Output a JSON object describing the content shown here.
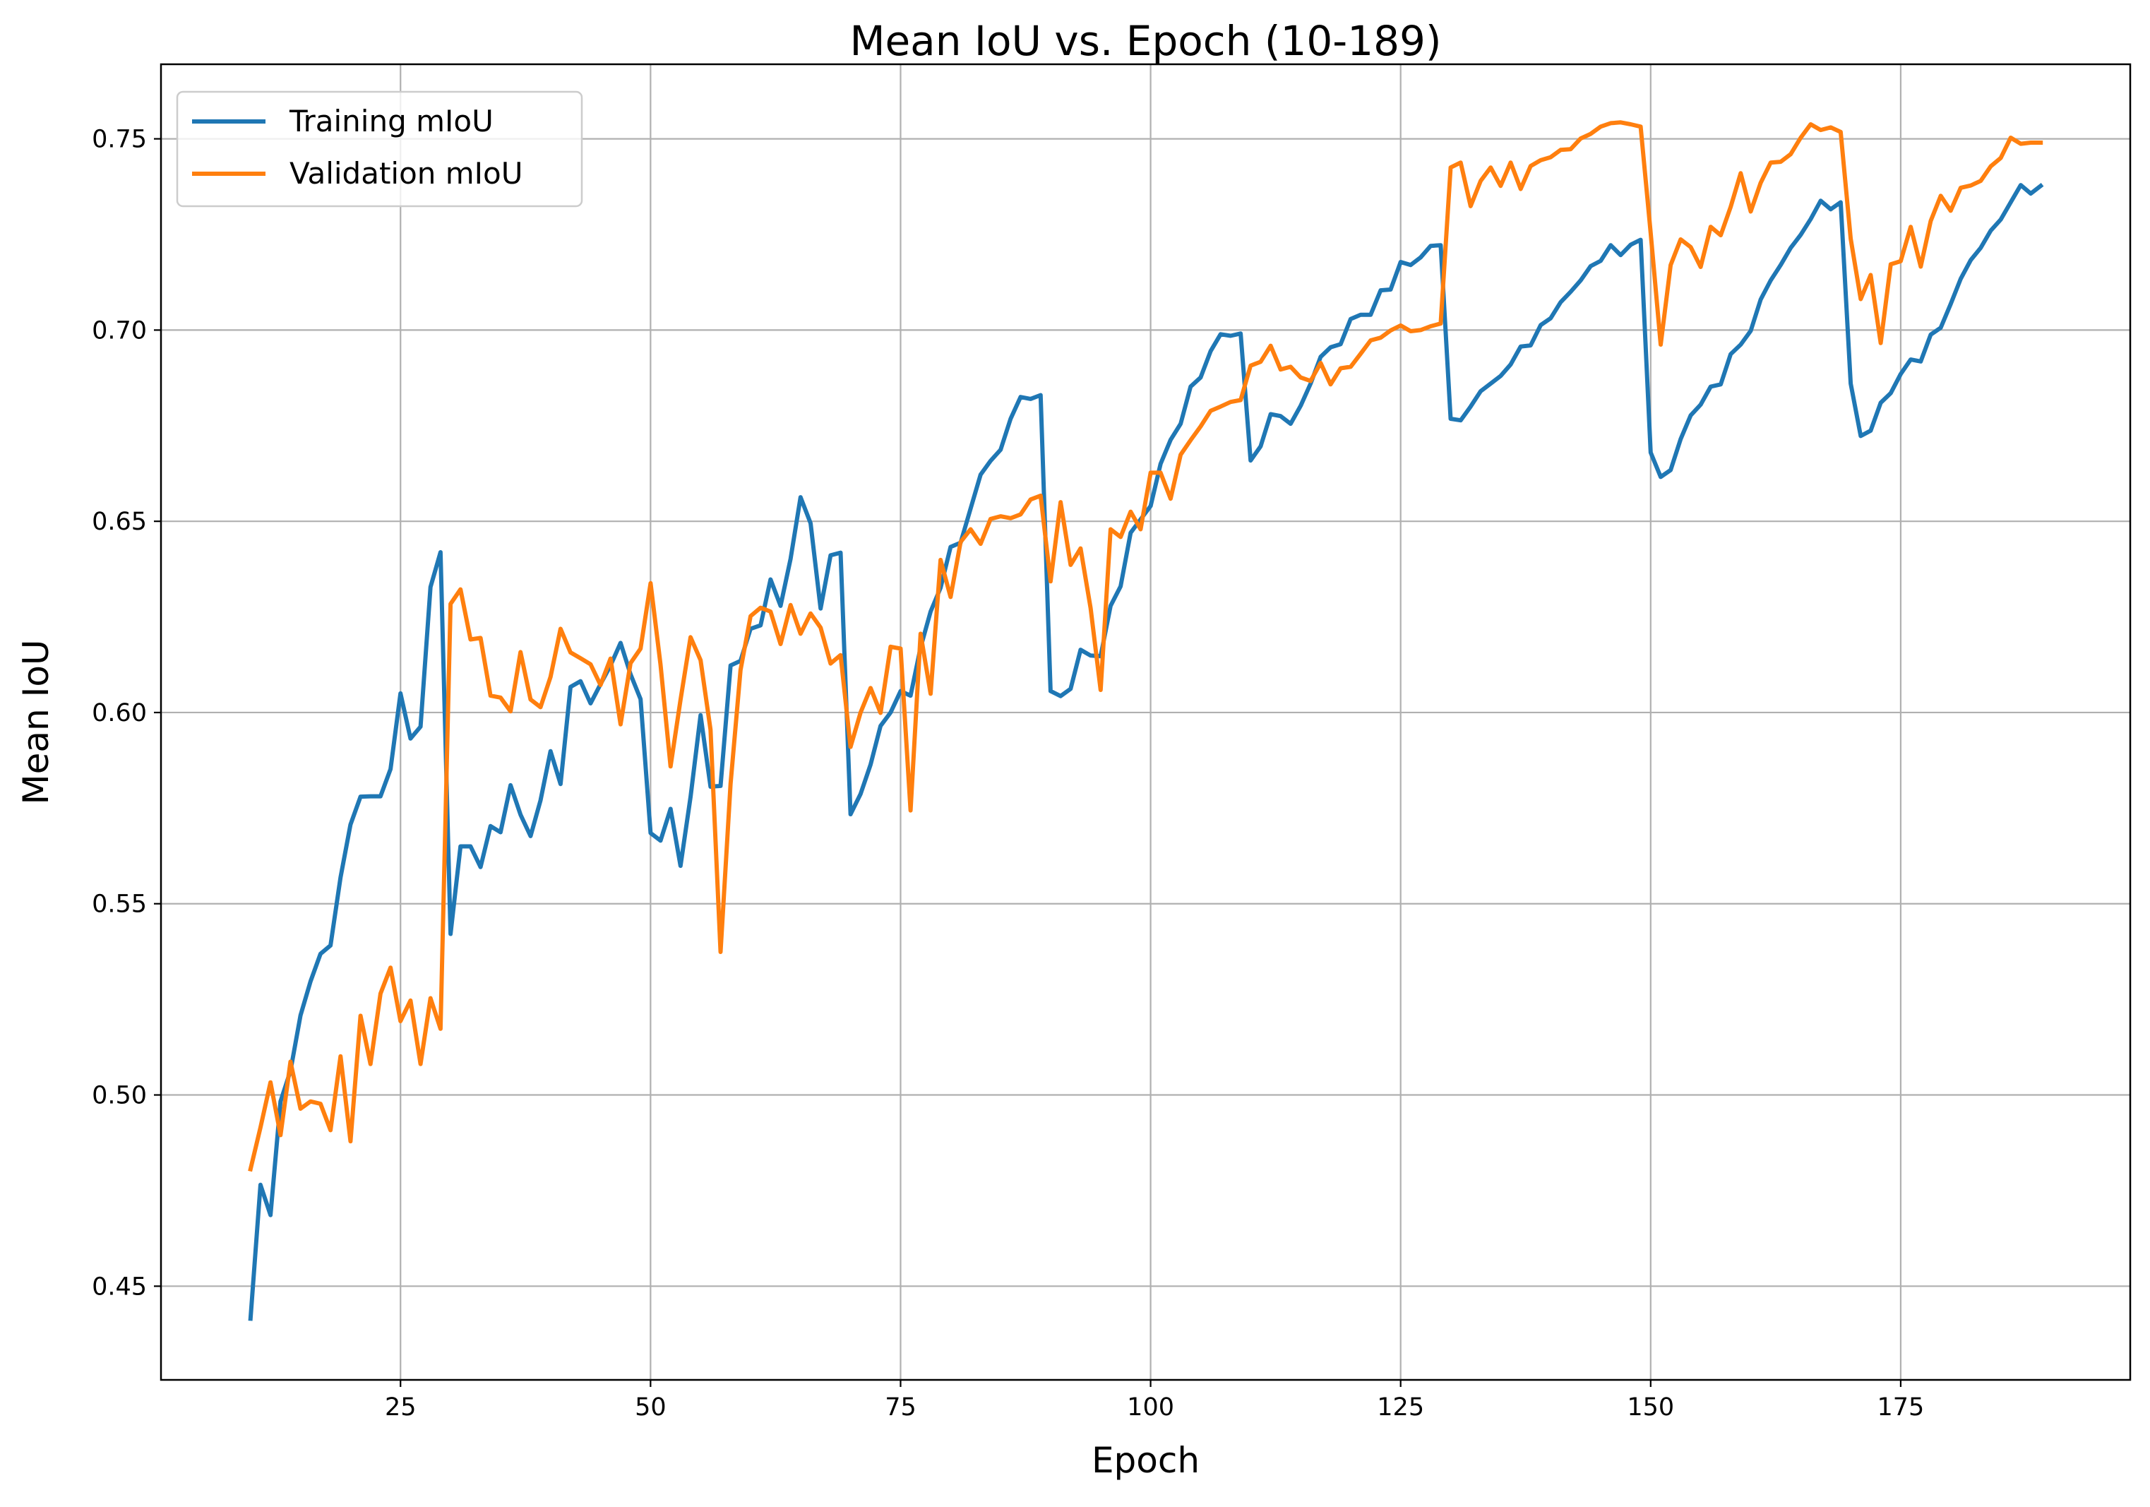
{
  "chart_data": {
    "type": "line",
    "title": "Mean IoU vs. Epoch (10-189)",
    "xlabel": "Epoch",
    "ylabel": "Mean IoU",
    "xlim": [
      1.05,
      197.95
    ],
    "ylim": [
      0.4255,
      0.7695
    ],
    "x_ticks": [
      25,
      50,
      75,
      100,
      125,
      150,
      175
    ],
    "y_ticks": [
      0.45,
      0.5,
      0.55,
      0.6,
      0.65,
      0.7,
      0.75
    ],
    "grid": true,
    "legend": {
      "placement": "top-left"
    },
    "x": [
      10,
      11,
      12,
      13,
      14,
      15,
      16,
      17,
      18,
      19,
      20,
      21,
      22,
      23,
      24,
      25,
      26,
      27,
      28,
      29,
      30,
      31,
      32,
      33,
      34,
      35,
      36,
      37,
      38,
      39,
      40,
      41,
      42,
      43,
      44,
      45,
      46,
      47,
      48,
      49,
      50,
      51,
      52,
      53,
      54,
      55,
      56,
      57,
      58,
      59,
      60,
      61,
      62,
      63,
      64,
      65,
      66,
      67,
      68,
      69,
      70,
      71,
      72,
      73,
      74,
      75,
      76,
      77,
      78,
      79,
      80,
      81,
      82,
      83,
      84,
      85,
      86,
      87,
      88,
      89,
      90,
      91,
      92,
      93,
      94,
      95,
      96,
      97,
      98,
      99,
      100,
      101,
      102,
      103,
      104,
      105,
      106,
      107,
      108,
      109,
      110,
      111,
      112,
      113,
      114,
      115,
      116,
      117,
      118,
      119,
      120,
      121,
      122,
      123,
      124,
      125,
      126,
      127,
      128,
      129,
      130,
      131,
      132,
      133,
      134,
      135,
      136,
      137,
      138,
      139,
      140,
      141,
      142,
      143,
      144,
      145,
      146,
      147,
      148,
      149,
      150,
      151,
      152,
      153,
      154,
      155,
      156,
      157,
      158,
      159,
      160,
      161,
      162,
      163,
      164,
      165,
      166,
      167,
      168,
      169,
      170,
      171,
      172,
      173,
      174,
      175,
      176,
      177,
      178,
      179,
      180,
      181,
      182,
      183,
      184,
      185,
      186,
      187,
      188,
      189
    ],
    "series": [
      {
        "name": "Training mIoU",
        "color": "#1f77b4",
        "values": [
          0.4415,
          0.4765,
          0.4686,
          0.4983,
          0.5063,
          0.5208,
          0.5297,
          0.5369,
          0.5391,
          0.5569,
          0.5707,
          0.578,
          0.5781,
          0.5781,
          0.5852,
          0.605,
          0.5932,
          0.5963,
          0.6328,
          0.6419,
          0.5421,
          0.565,
          0.565,
          0.5596,
          0.5703,
          0.5687,
          0.581,
          0.5733,
          0.5677,
          0.577,
          0.5899,
          0.5813,
          0.6067,
          0.6082,
          0.6024,
          0.6074,
          0.6123,
          0.6182,
          0.61,
          0.6035,
          0.5685,
          0.5665,
          0.5748,
          0.5599,
          0.5779,
          0.5993,
          0.5806,
          0.5808,
          0.6123,
          0.6135,
          0.6219,
          0.6228,
          0.6348,
          0.6279,
          0.6402,
          0.6563,
          0.6495,
          0.6272,
          0.6411,
          0.6418,
          0.5734,
          0.5787,
          0.5864,
          0.5965,
          0.6,
          0.6056,
          0.6044,
          0.617,
          0.6264,
          0.6326,
          0.6433,
          0.6444,
          0.6533,
          0.6622,
          0.6658,
          0.6687,
          0.6768,
          0.6825,
          0.682,
          0.683,
          0.6056,
          0.6043,
          0.6062,
          0.6164,
          0.6149,
          0.6147,
          0.6279,
          0.633,
          0.647,
          0.6505,
          0.654,
          0.665,
          0.6713,
          0.6755,
          0.6852,
          0.6876,
          0.6945,
          0.6989,
          0.6985,
          0.6991,
          0.6659,
          0.6696,
          0.678,
          0.6775,
          0.6755,
          0.6802,
          0.686,
          0.693,
          0.6955,
          0.6963,
          0.7029,
          0.704,
          0.704,
          0.7104,
          0.7106,
          0.7178,
          0.717,
          0.719,
          0.722,
          0.7222,
          0.6768,
          0.6764,
          0.68,
          0.684,
          0.686,
          0.688,
          0.691,
          0.6957,
          0.696,
          0.7013,
          0.7031,
          0.7073,
          0.71,
          0.713,
          0.7167,
          0.7181,
          0.7222,
          0.7196,
          0.7223,
          0.7236,
          0.668,
          0.6616,
          0.6634,
          0.6715,
          0.6777,
          0.6805,
          0.6852,
          0.6858,
          0.6937,
          0.6962,
          0.6998,
          0.708,
          0.713,
          0.717,
          0.7215,
          0.7249,
          0.729,
          0.7338,
          0.7316,
          0.7334,
          0.686,
          0.6723,
          0.6737,
          0.681,
          0.6835,
          0.6885,
          0.6923,
          0.6918,
          0.6988,
          0.7006,
          0.7068,
          0.7134,
          0.7183,
          0.7215,
          0.726,
          0.7289,
          0.7334,
          0.7379,
          0.7357,
          0.7377
        ]
      },
      {
        "name": "Validation mIoU",
        "color": "#ff7f0e",
        "values": [
          0.4806,
          0.4915,
          0.5033,
          0.4895,
          0.5087,
          0.4964,
          0.4983,
          0.4977,
          0.4908,
          0.5101,
          0.4879,
          0.5207,
          0.5081,
          0.5265,
          0.5333,
          0.5193,
          0.5247,
          0.5081,
          0.5253,
          0.5173,
          0.6284,
          0.6322,
          0.6191,
          0.6195,
          0.6044,
          0.6039,
          0.6003,
          0.6158,
          0.6034,
          0.6014,
          0.6093,
          0.6219,
          0.6157,
          0.6142,
          0.6126,
          0.6072,
          0.6141,
          0.5969,
          0.6129,
          0.6167,
          0.6338,
          0.6125,
          0.5859,
          0.6033,
          0.6197,
          0.6137,
          0.5955,
          0.5374,
          0.5814,
          0.6111,
          0.6252,
          0.6274,
          0.6264,
          0.6179,
          0.6281,
          0.6206,
          0.6259,
          0.6222,
          0.6128,
          0.615,
          0.591,
          0.6,
          0.6064,
          0.5999,
          0.6172,
          0.6167,
          0.5744,
          0.6206,
          0.6049,
          0.6399,
          0.6302,
          0.6446,
          0.6479,
          0.6441,
          0.6506,
          0.6513,
          0.6508,
          0.6518,
          0.6557,
          0.6567,
          0.6343,
          0.655,
          0.6386,
          0.6429,
          0.6273,
          0.6059,
          0.6479,
          0.6459,
          0.6525,
          0.6479,
          0.6627,
          0.6627,
          0.6559,
          0.6674,
          0.6712,
          0.6748,
          0.6789,
          0.68,
          0.6812,
          0.6817,
          0.6907,
          0.6917,
          0.6959,
          0.6897,
          0.6904,
          0.6876,
          0.6867,
          0.6914,
          0.6858,
          0.69,
          0.6904,
          0.6938,
          0.6973,
          0.698,
          0.6999,
          0.7012,
          0.6997,
          0.7,
          0.701,
          0.7017,
          0.7425,
          0.7438,
          0.7324,
          0.739,
          0.7425,
          0.7377,
          0.7438,
          0.7369,
          0.7429,
          0.7444,
          0.7452,
          0.7471,
          0.7473,
          0.7501,
          0.7513,
          0.7532,
          0.7541,
          0.7543,
          0.7538,
          0.7532,
          0.7254,
          0.6962,
          0.717,
          0.7237,
          0.7217,
          0.7165,
          0.727,
          0.7248,
          0.7322,
          0.741,
          0.731,
          0.7385,
          0.7438,
          0.744,
          0.746,
          0.7503,
          0.7538,
          0.7523,
          0.753,
          0.7518,
          0.7239,
          0.7081,
          0.7144,
          0.6966,
          0.7172,
          0.718,
          0.727,
          0.7166,
          0.7285,
          0.7351,
          0.7312,
          0.7372,
          0.7378,
          0.739,
          0.7428,
          0.745,
          0.7503,
          0.7487,
          0.749,
          0.749
        ]
      }
    ]
  }
}
